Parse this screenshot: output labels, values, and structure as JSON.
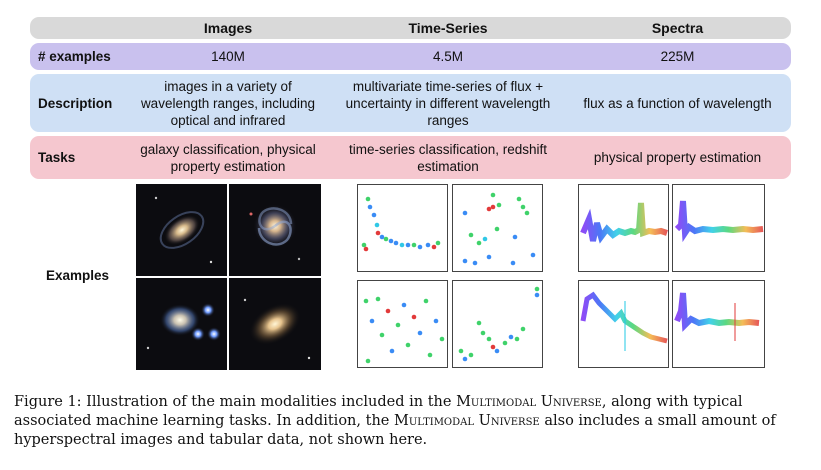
{
  "table": {
    "headers": {
      "images": "Images",
      "time_series": "Time-Series",
      "spectra": "Spectra"
    },
    "rows": {
      "examples_count": {
        "label": "# examples",
        "images": "140M",
        "time_series": "4.5M",
        "spectra": "225M"
      },
      "description": {
        "label": "Description",
        "images": "images in a variety of wavelength ranges, including optical and infrared",
        "time_series": "multivariate time-series of flux + uncertainty in different wavelength ranges",
        "spectra": "flux as a function of wavelength"
      },
      "tasks": {
        "label": "Tasks",
        "images": "galaxy classification, physical property estimation",
        "time_series": "time-series classification, redshift estimation",
        "spectra": "physical property estimation"
      },
      "examples": {
        "label": "Examples"
      }
    }
  },
  "caption": {
    "prefix": "Figure 1: Illustration of the main modalities included in the ",
    "name1": "Multimodal Universe",
    "middle": ", along with typical associated machine learning tasks. In addition, the ",
    "name2": "Multimodal Universe",
    "suffix": " also includes a small amount of hyperspectral images and tabular data, not shown here."
  },
  "colors": {
    "header_bg": "#d9d9d9",
    "examples_bg": "#c9c1ee",
    "description_bg": "#cfe0f5",
    "tasks_bg": "#f5c7cf"
  }
}
